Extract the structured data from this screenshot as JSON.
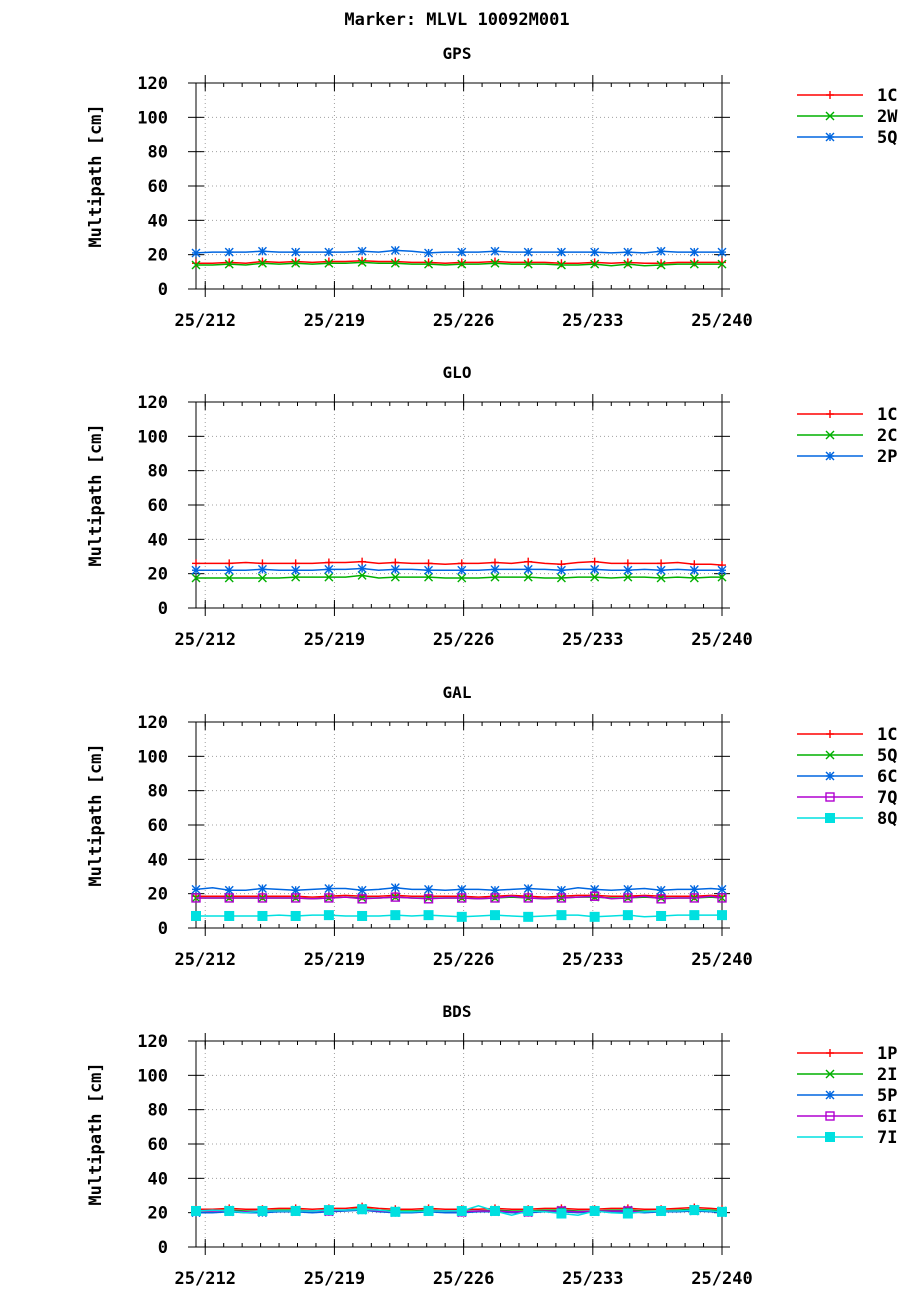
{
  "figure_title": "Marker: MLVL 10092M001",
  "chart_data": [
    {
      "type": "line",
      "title": "GPS",
      "ylabel": "Multipath [cm]",
      "ylim": [
        0,
        120
      ],
      "yticks": [
        0,
        20,
        40,
        60,
        80,
        100,
        120
      ],
      "xlim": [
        211.5,
        240
      ],
      "xticks": [
        212,
        219,
        226,
        233,
        240
      ],
      "xtick_labels": [
        "25/212",
        "25/219",
        "25/226",
        "25/233",
        "25/240"
      ],
      "grid": true,
      "legend_position": "right",
      "x": [
        211.5,
        212.4,
        213.3,
        214.2,
        215.1,
        216,
        216.9,
        217.8,
        218.7,
        219.6,
        220.5,
        221.4,
        222.3,
        223.2,
        224.1,
        225,
        225.9,
        226.8,
        227.7,
        228.6,
        229.5,
        230.4,
        231.3,
        232.2,
        233.1,
        234,
        234.9,
        235.8,
        236.7,
        237.6,
        238.5,
        239.4,
        240
      ],
      "series": [
        {
          "name": "1C",
          "color": "#ff0000",
          "marker": "plus",
          "values": [
            15,
            15,
            15.5,
            15,
            16,
            15.5,
            16,
            15.5,
            16,
            16,
            16.5,
            16,
            16,
            15.5,
            15.5,
            15,
            15.5,
            15.5,
            16,
            15.5,
            15.5,
            15.5,
            15,
            15,
            15.5,
            15,
            15.5,
            15,
            15,
            15.5,
            15.5,
            15.5,
            15.5
          ]
        },
        {
          "name": "2W",
          "color": "#00b000",
          "marker": "x",
          "values": [
            14,
            14,
            14.5,
            14,
            15,
            14.5,
            15,
            14.5,
            15,
            15,
            15.5,
            15,
            15,
            14.5,
            14.5,
            14,
            14.5,
            14.5,
            15,
            14.5,
            14.5,
            14.5,
            14,
            14,
            14.5,
            13.5,
            14.5,
            13.5,
            14,
            14.5,
            14.5,
            14.5,
            14.5
          ]
        },
        {
          "name": "5Q",
          "color": "#0066e0",
          "marker": "star",
          "values": [
            21,
            21.5,
            21.5,
            21.5,
            22,
            21.5,
            21.5,
            21.5,
            21.5,
            21.5,
            22,
            21.5,
            22.5,
            22,
            21,
            21.5,
            21.5,
            21.5,
            22,
            21.5,
            21.5,
            21.5,
            21.5,
            21.5,
            21.5,
            21,
            21.5,
            21,
            22,
            21.5,
            21.5,
            21.5,
            21.5
          ]
        }
      ]
    },
    {
      "type": "line",
      "title": "GLO",
      "ylabel": "Multipath [cm]",
      "ylim": [
        0,
        120
      ],
      "yticks": [
        0,
        20,
        40,
        60,
        80,
        100,
        120
      ],
      "xlim": [
        211.5,
        240
      ],
      "xticks": [
        212,
        219,
        226,
        233,
        240
      ],
      "xtick_labels": [
        "25/212",
        "25/219",
        "25/226",
        "25/233",
        "25/240"
      ],
      "grid": true,
      "legend_position": "right",
      "x": [
        211.5,
        212.4,
        213.3,
        214.2,
        215.1,
        216,
        216.9,
        217.8,
        218.7,
        219.6,
        220.5,
        221.4,
        222.3,
        223.2,
        224.1,
        225,
        225.9,
        226.8,
        227.7,
        228.6,
        229.5,
        230.4,
        231.3,
        232.2,
        233.1,
        234,
        234.9,
        235.8,
        236.7,
        237.6,
        238.5,
        239.4,
        240
      ],
      "series": [
        {
          "name": "1C",
          "color": "#ff0000",
          "marker": "plus",
          "values": [
            26,
            26,
            26,
            26.5,
            26,
            26,
            26,
            26,
            26.5,
            26.5,
            27,
            26,
            26.5,
            26,
            26,
            25.5,
            26,
            26,
            26.5,
            26,
            27,
            26,
            25.5,
            26.5,
            27,
            26,
            26,
            26,
            26,
            26.5,
            25.5,
            25.5,
            25
          ]
        },
        {
          "name": "2C",
          "color": "#00b000",
          "marker": "x",
          "values": [
            17.5,
            17.5,
            17.5,
            17.5,
            17.5,
            17.5,
            18,
            18,
            18,
            18,
            19,
            17.5,
            18,
            18,
            18,
            17.5,
            17.5,
            17.5,
            18,
            18,
            18,
            17.5,
            17.5,
            18,
            18,
            17.5,
            18,
            18,
            17.5,
            18,
            17.5,
            18,
            18
          ]
        },
        {
          "name": "2P",
          "color": "#0066e0",
          "marker": "star",
          "values": [
            22,
            22,
            22,
            22,
            22.5,
            22,
            22,
            22,
            22.5,
            22.5,
            23,
            22,
            22.5,
            22.5,
            22,
            22,
            22,
            22,
            22.5,
            22.5,
            22.5,
            22.5,
            22,
            22.5,
            22.5,
            22,
            22,
            22.5,
            22,
            22.5,
            22,
            22,
            22
          ]
        }
      ]
    },
    {
      "type": "line",
      "title": "GAL",
      "ylabel": "Multipath [cm]",
      "ylim": [
        0,
        120
      ],
      "yticks": [
        0,
        20,
        40,
        60,
        80,
        100,
        120
      ],
      "xlim": [
        211.5,
        240
      ],
      "xticks": [
        212,
        219,
        226,
        233,
        240
      ],
      "xtick_labels": [
        "25/212",
        "25/219",
        "25/226",
        "25/233",
        "25/240"
      ],
      "grid": true,
      "legend_position": "right",
      "x": [
        211.5,
        212.4,
        213.3,
        214.2,
        215.1,
        216,
        216.9,
        217.8,
        218.7,
        219.6,
        220.5,
        221.4,
        222.3,
        223.2,
        224.1,
        225,
        225.9,
        226.8,
        227.7,
        228.6,
        229.5,
        230.4,
        231.3,
        232.2,
        233.1,
        234,
        234.9,
        235.8,
        236.7,
        237.6,
        238.5,
        239.4,
        240
      ],
      "series": [
        {
          "name": "1C",
          "color": "#ff0000",
          "marker": "plus",
          "values": [
            18.5,
            18.5,
            18.5,
            18.5,
            18.5,
            18.5,
            18.5,
            18,
            18.5,
            19,
            18.5,
            18.5,
            19,
            18.5,
            18.5,
            18.5,
            18.5,
            18,
            18.5,
            19,
            18.5,
            18,
            18.5,
            19,
            19,
            18.5,
            18.5,
            19,
            18.5,
            18.5,
            18.5,
            19,
            18.5
          ]
        },
        {
          "name": "5Q",
          "color": "#00b000",
          "marker": "x",
          "values": [
            17.5,
            17.5,
            17.5,
            17.5,
            17.5,
            17.5,
            17.5,
            17,
            17.5,
            18,
            17.5,
            17.5,
            18,
            17.5,
            17.5,
            17.5,
            17.5,
            17,
            17.5,
            18,
            17.5,
            17,
            17.5,
            18,
            18,
            17.5,
            17.5,
            18,
            17.5,
            17.5,
            17.5,
            18,
            17.5
          ]
        },
        {
          "name": "6C",
          "color": "#0066e0",
          "marker": "star",
          "values": [
            22.5,
            23.5,
            22,
            22,
            23,
            22.5,
            22,
            22.5,
            23,
            23,
            22,
            22.5,
            23.5,
            22.5,
            22.5,
            22,
            22.5,
            22.5,
            22,
            22.5,
            23,
            22.5,
            22,
            23.5,
            22.5,
            22,
            22.5,
            23,
            22,
            22.5,
            22.5,
            23,
            22.5
          ]
        },
        {
          "name": "7Q",
          "color": "#b000d0",
          "marker": "square-open",
          "values": [
            17.5,
            17.5,
            17.5,
            17.5,
            17.5,
            17.5,
            17.5,
            17,
            17.5,
            18,
            17,
            17.5,
            18,
            17.5,
            17,
            17.5,
            17.5,
            17,
            17.5,
            18.5,
            17.5,
            17,
            17.5,
            18,
            18.5,
            17,
            17.5,
            18.5,
            17,
            17.5,
            17.5,
            18.5,
            17.5
          ]
        },
        {
          "name": "8Q",
          "color": "#00e0e0",
          "marker": "square-filled",
          "values": [
            7,
            7,
            7,
            7,
            7,
            7.5,
            7,
            7.5,
            7.5,
            7,
            7,
            7,
            7.5,
            7,
            7.5,
            7,
            6.5,
            7,
            7.5,
            7,
            6.5,
            7,
            7.5,
            7.5,
            6.5,
            7,
            7.5,
            6.5,
            7,
            7.5,
            7.5,
            7.5,
            7.5
          ]
        }
      ]
    },
    {
      "type": "line",
      "title": "BDS",
      "ylabel": "Multipath [cm]",
      "ylim": [
        0,
        120
      ],
      "yticks": [
        0,
        20,
        40,
        60,
        80,
        100,
        120
      ],
      "xlim": [
        211.5,
        240
      ],
      "xticks": [
        212,
        219,
        226,
        233,
        240
      ],
      "xtick_labels": [
        "25/212",
        "25/219",
        "25/226",
        "25/233",
        "25/240"
      ],
      "grid": true,
      "legend_position": "right",
      "x": [
        211.5,
        212.4,
        213.3,
        214.2,
        215.1,
        216,
        216.9,
        217.8,
        218.7,
        219.6,
        220.5,
        221.4,
        222.3,
        223.2,
        224.1,
        225,
        225.9,
        226.8,
        227.7,
        228.6,
        229.5,
        230.4,
        231.3,
        232.2,
        233.1,
        234,
        234.9,
        235.8,
        236.7,
        237.6,
        238.5,
        239.4,
        240
      ],
      "series": [
        {
          "name": "1P",
          "color": "#ff0000",
          "marker": "plus",
          "values": [
            22,
            22,
            22.5,
            22,
            22,
            22.5,
            22.5,
            22,
            22.5,
            22.5,
            23.5,
            22.5,
            22,
            22,
            22.5,
            22,
            22,
            22,
            22.5,
            22,
            22,
            22.5,
            22.5,
            22,
            22,
            22.5,
            22.5,
            22,
            22,
            22.5,
            23,
            22.5,
            22
          ]
        },
        {
          "name": "2I",
          "color": "#00b000",
          "marker": "x",
          "values": [
            21,
            21,
            21.5,
            21,
            21,
            21.5,
            21.5,
            21,
            21.5,
            21.5,
            22.5,
            21.5,
            21,
            21,
            21.5,
            21,
            21,
            21,
            21.5,
            21,
            21,
            21.5,
            21.5,
            21,
            21,
            21.5,
            21.5,
            21,
            21,
            21.5,
            22,
            21.5,
            21
          ]
        },
        {
          "name": "5P",
          "color": "#0066e0",
          "marker": "star",
          "values": [
            20,
            20,
            20.5,
            20,
            20,
            20.5,
            20.5,
            20,
            20.5,
            21,
            21.5,
            20.5,
            20,
            20,
            20.5,
            20,
            20,
            20.5,
            20.5,
            20,
            20,
            20.5,
            20.5,
            20,
            20.5,
            20.5,
            20.5,
            20,
            20.5,
            20.5,
            21,
            20.5,
            20
          ]
        },
        {
          "name": "6I",
          "color": "#b000d0",
          "marker": "square-open",
          "values": [
            21,
            21,
            21,
            20.5,
            21,
            21,
            21,
            21,
            21,
            21.5,
            22,
            21,
            20.5,
            20.5,
            21,
            21,
            20.5,
            21,
            21,
            20.5,
            20.5,
            21,
            21,
            20.5,
            21,
            21,
            21,
            20.5,
            21,
            21,
            21.5,
            21,
            20.5
          ]
        },
        {
          "name": "7I",
          "color": "#00e0e0",
          "marker": "square-filled",
          "values": [
            21,
            21.5,
            21,
            20,
            21,
            21,
            21,
            21,
            21.5,
            21.5,
            22,
            21.5,
            20.5,
            20.5,
            21,
            21,
            21,
            24,
            21,
            18.5,
            21,
            20.5,
            19.5,
            18.5,
            21,
            20,
            19.5,
            20.5,
            21,
            21,
            21.5,
            21,
            20.5
          ]
        }
      ]
    }
  ]
}
